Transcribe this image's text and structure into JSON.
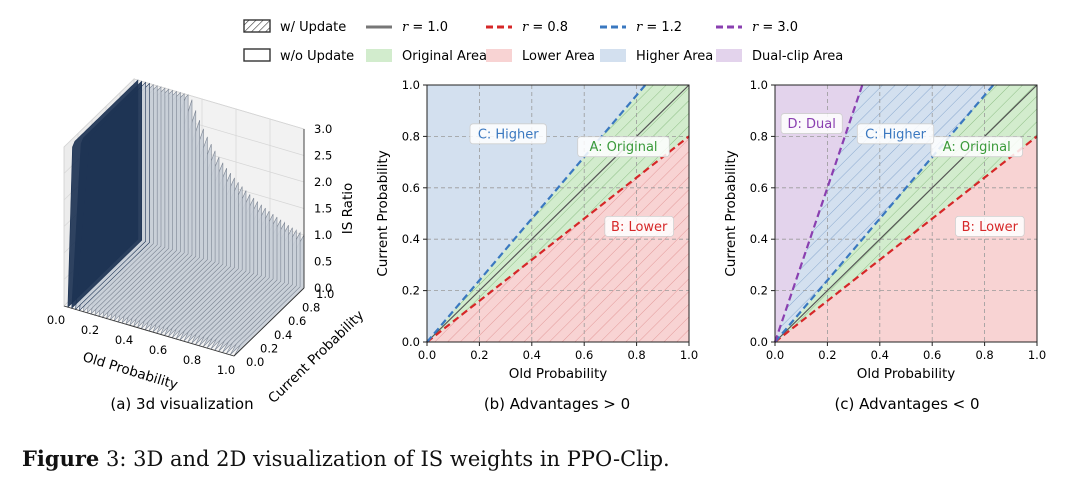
{
  "figure": {
    "caption_prefix": "Figure",
    "caption_number": "3",
    "caption_text": ": 3D and 2D visualization of IS weights in PPO-Clip."
  },
  "legend": {
    "row1": [
      {
        "key": "w_update",
        "label": "w/ Update",
        "kind": "hatch-box"
      },
      {
        "key": "r10",
        "label": "r = 1.0",
        "kind": "line",
        "color": "#777777",
        "dash": "solid"
      },
      {
        "key": "r08",
        "label": "r = 0.8",
        "kind": "line",
        "color": "#d62728",
        "dash": "dashed"
      },
      {
        "key": "r12",
        "label": "r = 1.2",
        "kind": "line",
        "color": "#3a78c0",
        "dash": "dashed"
      },
      {
        "key": "r30",
        "label": "r = 3.0",
        "kind": "line",
        "color": "#8a3fb0",
        "dash": "dashed"
      }
    ],
    "row2": [
      {
        "key": "wo_update",
        "label": "w/o Update",
        "kind": "plain-box"
      },
      {
        "key": "orig",
        "label": "Original Area",
        "kind": "fill",
        "color": "#d2eccd"
      },
      {
        "key": "lower",
        "label": "Lower Area",
        "kind": "fill",
        "color": "#f8d3d3"
      },
      {
        "key": "higher",
        "label": "Higher Area",
        "kind": "fill",
        "color": "#d3e0ef"
      },
      {
        "key": "dual",
        "label": "Dual-clip Area",
        "kind": "fill",
        "color": "#e3d3ec"
      }
    ]
  },
  "colors": {
    "lower_fill": "#f8d3d3",
    "orig_fill": "#d2eccd",
    "higher_fill": "#d3e0ef",
    "dual_fill": "#e3d3ec",
    "r10": "#555555",
    "r08": "#d62728",
    "r12": "#3a78c0",
    "r30": "#8a3fb0",
    "hatch_orig": "#8fbf86",
    "hatch_lower": "#e39a9a",
    "hatch_higher": "#8aa9cf",
    "label_orig": "#3a9a3a",
    "label_lower": "#d62728",
    "label_higher": "#3a78c0",
    "label_dual": "#8a3fb0"
  },
  "chart_data": [
    {
      "type": "surface3d",
      "panel_caption": "(a) 3d visualization",
      "xlabel": "Old Probability",
      "ylabel": "Current Probability",
      "zlabel": "IS Ratio",
      "xlim": [
        0,
        1
      ],
      "ylim": [
        0,
        1
      ],
      "zlim": [
        0,
        3
      ],
      "xticks": [
        "0.0",
        "0.2",
        "0.4",
        "0.6",
        "0.8",
        "1.0"
      ],
      "yticks": [
        "0.0",
        "0.2",
        "0.4",
        "0.6",
        "0.8",
        "1.0"
      ],
      "zticks": [
        "0.0",
        "0.5",
        "1.0",
        "1.5",
        "2.0",
        "2.5",
        "3.0"
      ],
      "surface": "z = min(current / old, 3)"
    },
    {
      "type": "area",
      "panel_caption": "(b) Advantages > 0",
      "xlabel": "Old Probability",
      "ylabel": "Current Probability",
      "xlim": [
        0,
        1
      ],
      "ylim": [
        0,
        1
      ],
      "xticks": [
        "0.0",
        "0.2",
        "0.4",
        "0.6",
        "0.8",
        "1.0"
      ],
      "yticks": [
        "0.0",
        "0.2",
        "0.4",
        "0.6",
        "0.8",
        "1.0"
      ],
      "lines": [
        {
          "name": "r = 1.0",
          "slope": 1.0
        },
        {
          "name": "r = 0.8",
          "slope": 0.8
        },
        {
          "name": "r = 1.2",
          "slope": 1.2
        }
      ],
      "regions": [
        {
          "id": "lower",
          "label": "B: Lower",
          "between": [
            0,
            0.8
          ],
          "hatched": true,
          "label_at": [
            0.81,
            0.45
          ]
        },
        {
          "id": "orig",
          "label": "A: Original",
          "between": [
            0.8,
            1.2
          ],
          "hatched": true,
          "label_at": [
            0.75,
            0.76
          ]
        },
        {
          "id": "higher",
          "label": "C: Higher",
          "between": [
            1.2,
            1000
          ],
          "hatched": false,
          "label_at": [
            0.31,
            0.81
          ]
        }
      ]
    },
    {
      "type": "area",
      "panel_caption": "(c) Advantages < 0",
      "xlabel": "Old Probability",
      "ylabel": "Current Probability",
      "xlim": [
        0,
        1
      ],
      "ylim": [
        0,
        1
      ],
      "xticks": [
        "0.0",
        "0.2",
        "0.4",
        "0.6",
        "0.8",
        "1.0"
      ],
      "yticks": [
        "0.0",
        "0.2",
        "0.4",
        "0.6",
        "0.8",
        "1.0"
      ],
      "lines": [
        {
          "name": "r = 1.0",
          "slope": 1.0
        },
        {
          "name": "r = 0.8",
          "slope": 0.8
        },
        {
          "name": "r = 1.2",
          "slope": 1.2
        },
        {
          "name": "r = 3.0",
          "slope": 3.0
        }
      ],
      "regions": [
        {
          "id": "lower",
          "label": "B: Lower",
          "between": [
            0,
            0.8
          ],
          "hatched": false,
          "label_at": [
            0.82,
            0.45
          ]
        },
        {
          "id": "orig",
          "label": "A: Original",
          "between": [
            0.8,
            1.2
          ],
          "hatched": true,
          "label_at": [
            0.77,
            0.76
          ]
        },
        {
          "id": "higher",
          "label": "C: Higher",
          "between": [
            1.2,
            3.0
          ],
          "hatched": true,
          "label_at": [
            0.46,
            0.81
          ]
        },
        {
          "id": "dual",
          "label": "D: Dual",
          "between": [
            3.0,
            1000
          ],
          "hatched": false,
          "label_at": [
            0.14,
            0.85
          ]
        }
      ]
    }
  ]
}
